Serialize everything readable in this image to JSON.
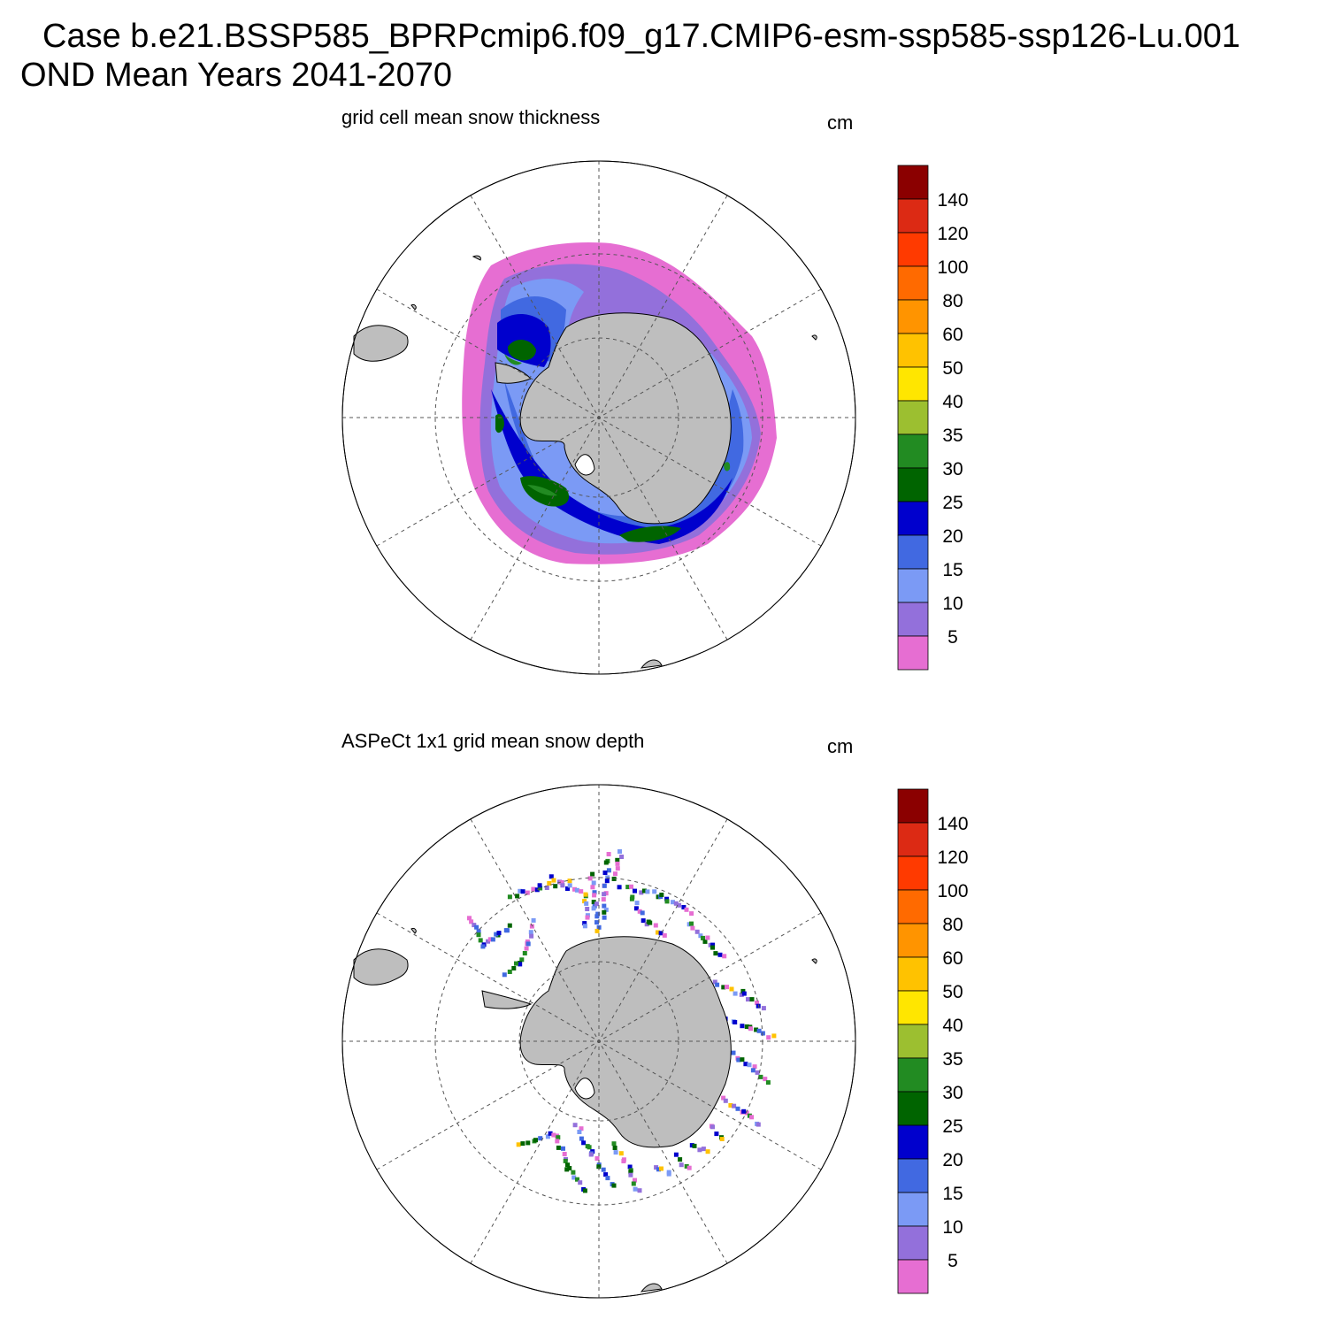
{
  "header": {
    "line1": "Case b.e21.BSSP585_BPRPcmip6.f09_g17.CMIP6-esm-ssp585-ssp126-Lu.001",
    "line2": "OND Mean   Years 2041-2070"
  },
  "panels": [
    {
      "title": "grid cell mean snow thickness",
      "units": "cm"
    },
    {
      "title": "ASPeCt 1x1 grid mean snow depth",
      "units": "cm"
    }
  ],
  "colorbar": {
    "labels": [
      "140",
      "120",
      "100",
      "80",
      "60",
      "50",
      "40",
      "35",
      "30",
      "25",
      "20",
      "15",
      "10",
      "5"
    ],
    "colors": [
      "#8b0000",
      "#dc2a14",
      "#ff3a00",
      "#ff6a00",
      "#ff9400",
      "#ffc200",
      "#ffe600",
      "#9cbf30",
      "#228b22",
      "#006400",
      "#0000cd",
      "#4169e1",
      "#7b9af5",
      "#9370db",
      "#e66ed2"
    ]
  },
  "map_colors": {
    "land": "#bebebe",
    "grid": "#555555"
  }
}
